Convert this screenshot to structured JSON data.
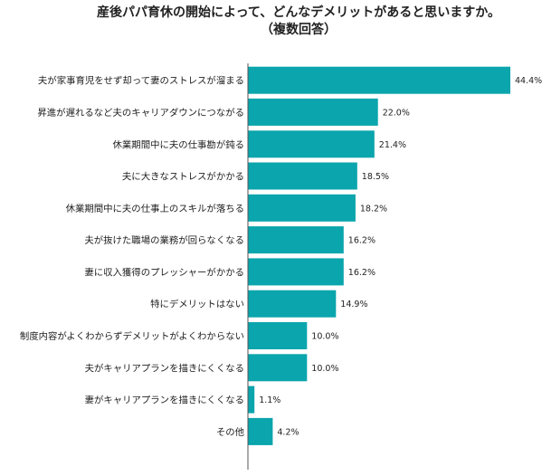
{
  "title_line1": "産後パパ育休の開始によって、どんなデメリットがあると思いますか。",
  "title_line2": "（複数回答）",
  "chart_data": {
    "type": "bar",
    "orientation": "horizontal",
    "title": "産後パパ育休の開始によって、どんなデメリットがあると思いますか。（複数回答）",
    "categories": [
      "夫が家事育児をせず却って妻のストレスが溜まる",
      "昇進が遅れるなど夫のキャリアダウンにつながる",
      "休業期間中に夫の仕事勘が鈍る",
      "夫に大きなストレスがかかる",
      "休業期間中に夫の仕事上のスキルが落ちる",
      "夫が抜けた職場の業務が回らなくなる",
      "妻に収入獲得のプレッシャーがかかる",
      "特にデメリットはない",
      "制度内容がよくわからずデメリットがよくわからない",
      "夫がキャリアプランを描きにくくなる",
      "妻がキャリアプランを描きにくくなる",
      "その他"
    ],
    "values": [
      44.4,
      22.0,
      21.4,
      18.5,
      18.2,
      16.2,
      16.2,
      14.9,
      10.0,
      10.0,
      1.1,
      4.2
    ],
    "value_labels": [
      "44.4%",
      "22.0%",
      "21.4%",
      "18.5%",
      "18.2%",
      "16.2%",
      "16.2%",
      "14.9%",
      "10.0%",
      "10.0%",
      "1.1%",
      "4.2%"
    ],
    "unit": "%",
    "xlim": [
      0,
      50
    ],
    "bar_color": "#0aa5ad",
    "axis_color": "#555555",
    "grid": false,
    "legend": "none"
  }
}
